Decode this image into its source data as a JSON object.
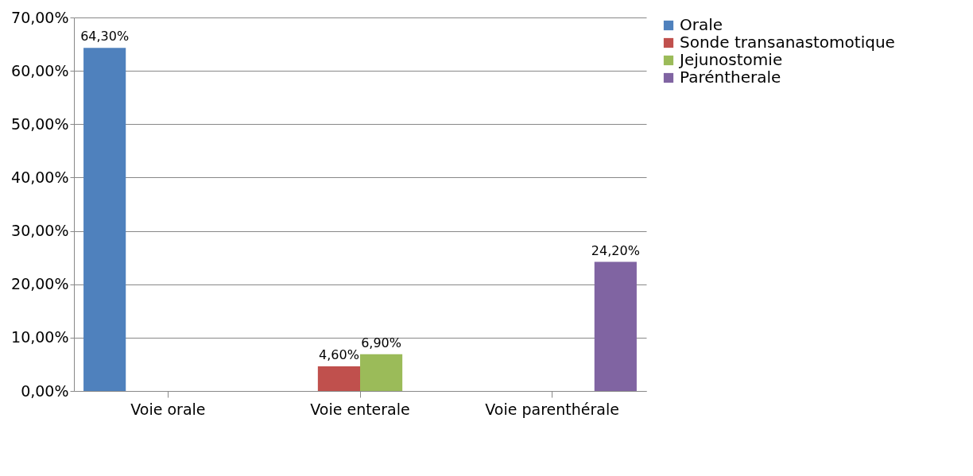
{
  "chart_data": {
    "type": "bar",
    "categories": [
      "Voie orale",
      "Voie enterale",
      "Voie parenthérale"
    ],
    "series": [
      {
        "name": "Orale",
        "color": "#4f81bd",
        "values": [
          64.3,
          null,
          null
        ],
        "value_labels": [
          "64,30%",
          null,
          null
        ]
      },
      {
        "name": "Sonde transanastomotique",
        "color": "#c0504d",
        "values": [
          null,
          4.6,
          null
        ],
        "value_labels": [
          null,
          "4,60%",
          null
        ]
      },
      {
        "name": "Jejunostomie",
        "color": "#9bbb59",
        "values": [
          null,
          6.9,
          null
        ],
        "value_labels": [
          null,
          "6,90%",
          null
        ]
      },
      {
        "name": "Paréntherale",
        "color": "#8064a2",
        "values": [
          null,
          null,
          24.2
        ],
        "value_labels": [
          null,
          null,
          "24,20%"
        ]
      }
    ],
    "ylim": [
      0,
      70
    ],
    "yticks": [
      {
        "value": 0,
        "label": "0,00%"
      },
      {
        "value": 10,
        "label": "10,00%"
      },
      {
        "value": 20,
        "label": "20,00%"
      },
      {
        "value": 30,
        "label": "30,00%"
      },
      {
        "value": 40,
        "label": "40,00%"
      },
      {
        "value": 50,
        "label": "50,00%"
      },
      {
        "value": 60,
        "label": "60,00%"
      },
      {
        "value": 70,
        "label": "70,00%"
      }
    ],
    "grid": "y",
    "legend": "right"
  }
}
